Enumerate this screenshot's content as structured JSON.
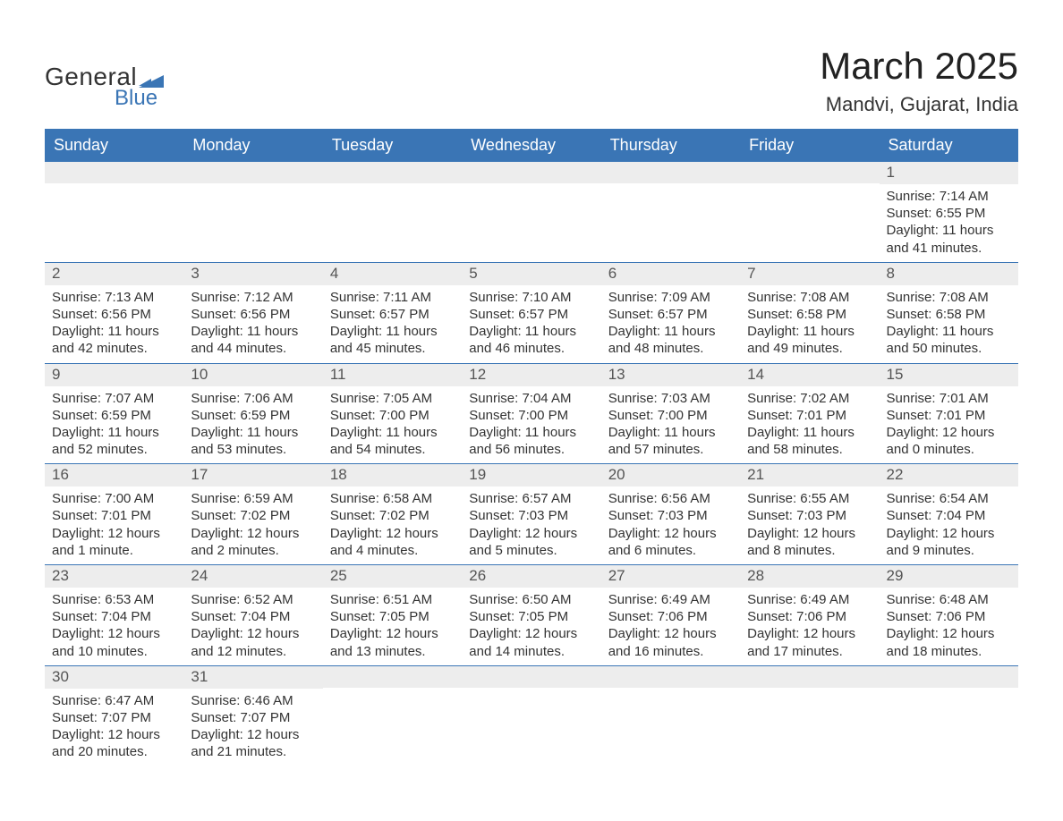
{
  "logo": {
    "word1": "General",
    "word2": "Blue",
    "text_color": "#333333",
    "accent_color": "#3a75b5"
  },
  "title": "March 2025",
  "location": "Mandvi, Gujarat, India",
  "colors": {
    "header_bg": "#3a75b5",
    "header_text": "#ffffff",
    "daynum_bg": "#ededed",
    "daynum_text": "#555555",
    "body_text": "#333333",
    "rule": "#3a75b5",
    "page_bg": "#ffffff"
  },
  "typography": {
    "title_fontsize": 42,
    "location_fontsize": 22,
    "dayhead_fontsize": 18,
    "daynum_fontsize": 17,
    "body_fontsize": 15,
    "font_family": "Arial"
  },
  "day_headers": [
    "Sunday",
    "Monday",
    "Tuesday",
    "Wednesday",
    "Thursday",
    "Friday",
    "Saturday"
  ],
  "weeks": [
    [
      {
        "n": "",
        "sunrise": "",
        "sunset": "",
        "daylight": ""
      },
      {
        "n": "",
        "sunrise": "",
        "sunset": "",
        "daylight": ""
      },
      {
        "n": "",
        "sunrise": "",
        "sunset": "",
        "daylight": ""
      },
      {
        "n": "",
        "sunrise": "",
        "sunset": "",
        "daylight": ""
      },
      {
        "n": "",
        "sunrise": "",
        "sunset": "",
        "daylight": ""
      },
      {
        "n": "",
        "sunrise": "",
        "sunset": "",
        "daylight": ""
      },
      {
        "n": "1",
        "sunrise": "Sunrise: 7:14 AM",
        "sunset": "Sunset: 6:55 PM",
        "daylight": "Daylight: 11 hours and 41 minutes."
      }
    ],
    [
      {
        "n": "2",
        "sunrise": "Sunrise: 7:13 AM",
        "sunset": "Sunset: 6:56 PM",
        "daylight": "Daylight: 11 hours and 42 minutes."
      },
      {
        "n": "3",
        "sunrise": "Sunrise: 7:12 AM",
        "sunset": "Sunset: 6:56 PM",
        "daylight": "Daylight: 11 hours and 44 minutes."
      },
      {
        "n": "4",
        "sunrise": "Sunrise: 7:11 AM",
        "sunset": "Sunset: 6:57 PM",
        "daylight": "Daylight: 11 hours and 45 minutes."
      },
      {
        "n": "5",
        "sunrise": "Sunrise: 7:10 AM",
        "sunset": "Sunset: 6:57 PM",
        "daylight": "Daylight: 11 hours and 46 minutes."
      },
      {
        "n": "6",
        "sunrise": "Sunrise: 7:09 AM",
        "sunset": "Sunset: 6:57 PM",
        "daylight": "Daylight: 11 hours and 48 minutes."
      },
      {
        "n": "7",
        "sunrise": "Sunrise: 7:08 AM",
        "sunset": "Sunset: 6:58 PM",
        "daylight": "Daylight: 11 hours and 49 minutes."
      },
      {
        "n": "8",
        "sunrise": "Sunrise: 7:08 AM",
        "sunset": "Sunset: 6:58 PM",
        "daylight": "Daylight: 11 hours and 50 minutes."
      }
    ],
    [
      {
        "n": "9",
        "sunrise": "Sunrise: 7:07 AM",
        "sunset": "Sunset: 6:59 PM",
        "daylight": "Daylight: 11 hours and 52 minutes."
      },
      {
        "n": "10",
        "sunrise": "Sunrise: 7:06 AM",
        "sunset": "Sunset: 6:59 PM",
        "daylight": "Daylight: 11 hours and 53 minutes."
      },
      {
        "n": "11",
        "sunrise": "Sunrise: 7:05 AM",
        "sunset": "Sunset: 7:00 PM",
        "daylight": "Daylight: 11 hours and 54 minutes."
      },
      {
        "n": "12",
        "sunrise": "Sunrise: 7:04 AM",
        "sunset": "Sunset: 7:00 PM",
        "daylight": "Daylight: 11 hours and 56 minutes."
      },
      {
        "n": "13",
        "sunrise": "Sunrise: 7:03 AM",
        "sunset": "Sunset: 7:00 PM",
        "daylight": "Daylight: 11 hours and 57 minutes."
      },
      {
        "n": "14",
        "sunrise": "Sunrise: 7:02 AM",
        "sunset": "Sunset: 7:01 PM",
        "daylight": "Daylight: 11 hours and 58 minutes."
      },
      {
        "n": "15",
        "sunrise": "Sunrise: 7:01 AM",
        "sunset": "Sunset: 7:01 PM",
        "daylight": "Daylight: 12 hours and 0 minutes."
      }
    ],
    [
      {
        "n": "16",
        "sunrise": "Sunrise: 7:00 AM",
        "sunset": "Sunset: 7:01 PM",
        "daylight": "Daylight: 12 hours and 1 minute."
      },
      {
        "n": "17",
        "sunrise": "Sunrise: 6:59 AM",
        "sunset": "Sunset: 7:02 PM",
        "daylight": "Daylight: 12 hours and 2 minutes."
      },
      {
        "n": "18",
        "sunrise": "Sunrise: 6:58 AM",
        "sunset": "Sunset: 7:02 PM",
        "daylight": "Daylight: 12 hours and 4 minutes."
      },
      {
        "n": "19",
        "sunrise": "Sunrise: 6:57 AM",
        "sunset": "Sunset: 7:03 PM",
        "daylight": "Daylight: 12 hours and 5 minutes."
      },
      {
        "n": "20",
        "sunrise": "Sunrise: 6:56 AM",
        "sunset": "Sunset: 7:03 PM",
        "daylight": "Daylight: 12 hours and 6 minutes."
      },
      {
        "n": "21",
        "sunrise": "Sunrise: 6:55 AM",
        "sunset": "Sunset: 7:03 PM",
        "daylight": "Daylight: 12 hours and 8 minutes."
      },
      {
        "n": "22",
        "sunrise": "Sunrise: 6:54 AM",
        "sunset": "Sunset: 7:04 PM",
        "daylight": "Daylight: 12 hours and 9 minutes."
      }
    ],
    [
      {
        "n": "23",
        "sunrise": "Sunrise: 6:53 AM",
        "sunset": "Sunset: 7:04 PM",
        "daylight": "Daylight: 12 hours and 10 minutes."
      },
      {
        "n": "24",
        "sunrise": "Sunrise: 6:52 AM",
        "sunset": "Sunset: 7:04 PM",
        "daylight": "Daylight: 12 hours and 12 minutes."
      },
      {
        "n": "25",
        "sunrise": "Sunrise: 6:51 AM",
        "sunset": "Sunset: 7:05 PM",
        "daylight": "Daylight: 12 hours and 13 minutes."
      },
      {
        "n": "26",
        "sunrise": "Sunrise: 6:50 AM",
        "sunset": "Sunset: 7:05 PM",
        "daylight": "Daylight: 12 hours and 14 minutes."
      },
      {
        "n": "27",
        "sunrise": "Sunrise: 6:49 AM",
        "sunset": "Sunset: 7:06 PM",
        "daylight": "Daylight: 12 hours and 16 minutes."
      },
      {
        "n": "28",
        "sunrise": "Sunrise: 6:49 AM",
        "sunset": "Sunset: 7:06 PM",
        "daylight": "Daylight: 12 hours and 17 minutes."
      },
      {
        "n": "29",
        "sunrise": "Sunrise: 6:48 AM",
        "sunset": "Sunset: 7:06 PM",
        "daylight": "Daylight: 12 hours and 18 minutes."
      }
    ],
    [
      {
        "n": "30",
        "sunrise": "Sunrise: 6:47 AM",
        "sunset": "Sunset: 7:07 PM",
        "daylight": "Daylight: 12 hours and 20 minutes."
      },
      {
        "n": "31",
        "sunrise": "Sunrise: 6:46 AM",
        "sunset": "Sunset: 7:07 PM",
        "daylight": "Daylight: 12 hours and 21 minutes."
      },
      {
        "n": "",
        "sunrise": "",
        "sunset": "",
        "daylight": ""
      },
      {
        "n": "",
        "sunrise": "",
        "sunset": "",
        "daylight": ""
      },
      {
        "n": "",
        "sunrise": "",
        "sunset": "",
        "daylight": ""
      },
      {
        "n": "",
        "sunrise": "",
        "sunset": "",
        "daylight": ""
      },
      {
        "n": "",
        "sunrise": "",
        "sunset": "",
        "daylight": ""
      }
    ]
  ]
}
